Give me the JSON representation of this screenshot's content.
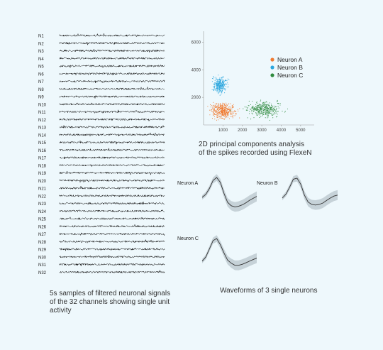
{
  "captions": {
    "signals": [
      "5s samples of filtered neuronal signals",
      "of the 32 channels showing single unit",
      "activity"
    ],
    "pca": [
      "2D principal components analysis",
      "of the spikes recorded using FlexeN"
    ],
    "waveforms": "Waveforms of 3 single neurons"
  },
  "chart_data": [
    {
      "type": "line",
      "kind": "multichannel-traces",
      "channels": [
        "N1",
        "N2",
        "N3",
        "N4",
        "N5",
        "N6",
        "N7",
        "N8",
        "N9",
        "N10",
        "N11",
        "N12",
        "N13",
        "N14",
        "N15",
        "N16",
        "N17",
        "N18",
        "N19",
        "N20",
        "N21",
        "N22",
        "N23",
        "N24",
        "N25",
        "N26",
        "N27",
        "N28",
        "N29",
        "N30",
        "N31",
        "N32"
      ],
      "trace_color": "#111111"
    },
    {
      "type": "scatter",
      "xticks": [
        1000,
        2000,
        3000,
        4000,
        5000
      ],
      "yticks": [
        2000,
        4000,
        6000
      ],
      "xlim": [
        0,
        5700
      ],
      "ylim": [
        0,
        6800
      ],
      "legend_position": "top-right",
      "series": [
        {
          "name": "Neuron A",
          "color": "#f07a30",
          "center": [
            1000,
            1000
          ],
          "spread": [
            280,
            260
          ],
          "count": 420
        },
        {
          "name": "Neuron B",
          "color": "#2aa6de",
          "center": [
            850,
            2900
          ],
          "spread": [
            170,
            260
          ],
          "count": 320
        },
        {
          "name": "Neuron C",
          "color": "#2e8a3e",
          "center": [
            3100,
            1150
          ],
          "spread": [
            400,
            260
          ],
          "count": 360
        }
      ]
    },
    {
      "type": "line",
      "kind": "waveforms",
      "mean_color": "#333333",
      "band_color": "#b8c6cc",
      "panels": [
        {
          "name": "Neuron A",
          "values": [
            0.0,
            0.15,
            0.45,
            0.85,
            1.0,
            0.75,
            0.2,
            -0.25,
            -0.42,
            -0.48,
            -0.45,
            -0.38,
            -0.28,
            -0.15,
            -0.05,
            0.05
          ]
        },
        {
          "name": "Neuron B",
          "values": [
            0.0,
            0.2,
            0.55,
            0.95,
            1.0,
            0.7,
            0.15,
            -0.2,
            -0.32,
            -0.35,
            -0.32,
            -0.25,
            -0.12,
            0.0,
            0.1,
            0.15
          ]
        },
        {
          "name": "Neuron C",
          "values": [
            -0.1,
            0.1,
            0.5,
            0.9,
            1.0,
            0.7,
            0.3,
            -0.05,
            -0.2,
            -0.3,
            -0.3,
            -0.25,
            -0.18,
            -0.1,
            -0.02,
            0.05
          ]
        }
      ]
    }
  ]
}
